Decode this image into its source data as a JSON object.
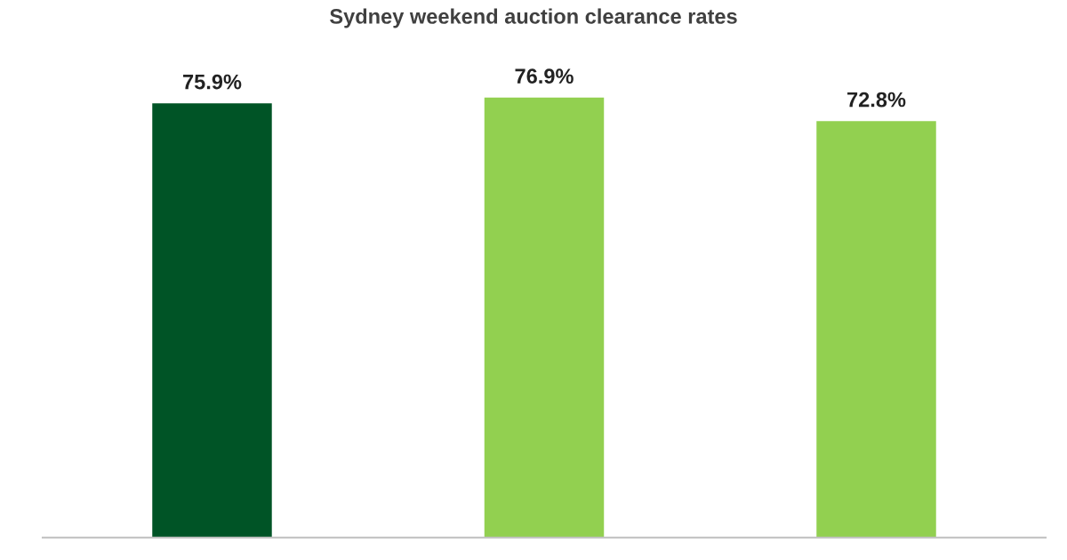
{
  "chart_data": {
    "type": "bar",
    "title": "Sydney weekend auction clearance rates",
    "categories": [
      null,
      null,
      null
    ],
    "values": [
      75.9,
      76.9,
      72.8
    ],
    "colors": [
      "#005426",
      "#92d050",
      "#92d050"
    ],
    "tick_labels": false,
    "data_labels": true,
    "value_labels": [
      "75.9%",
      "76.9%",
      "72.8%"
    ],
    "grid": false,
    "legend": false
  }
}
